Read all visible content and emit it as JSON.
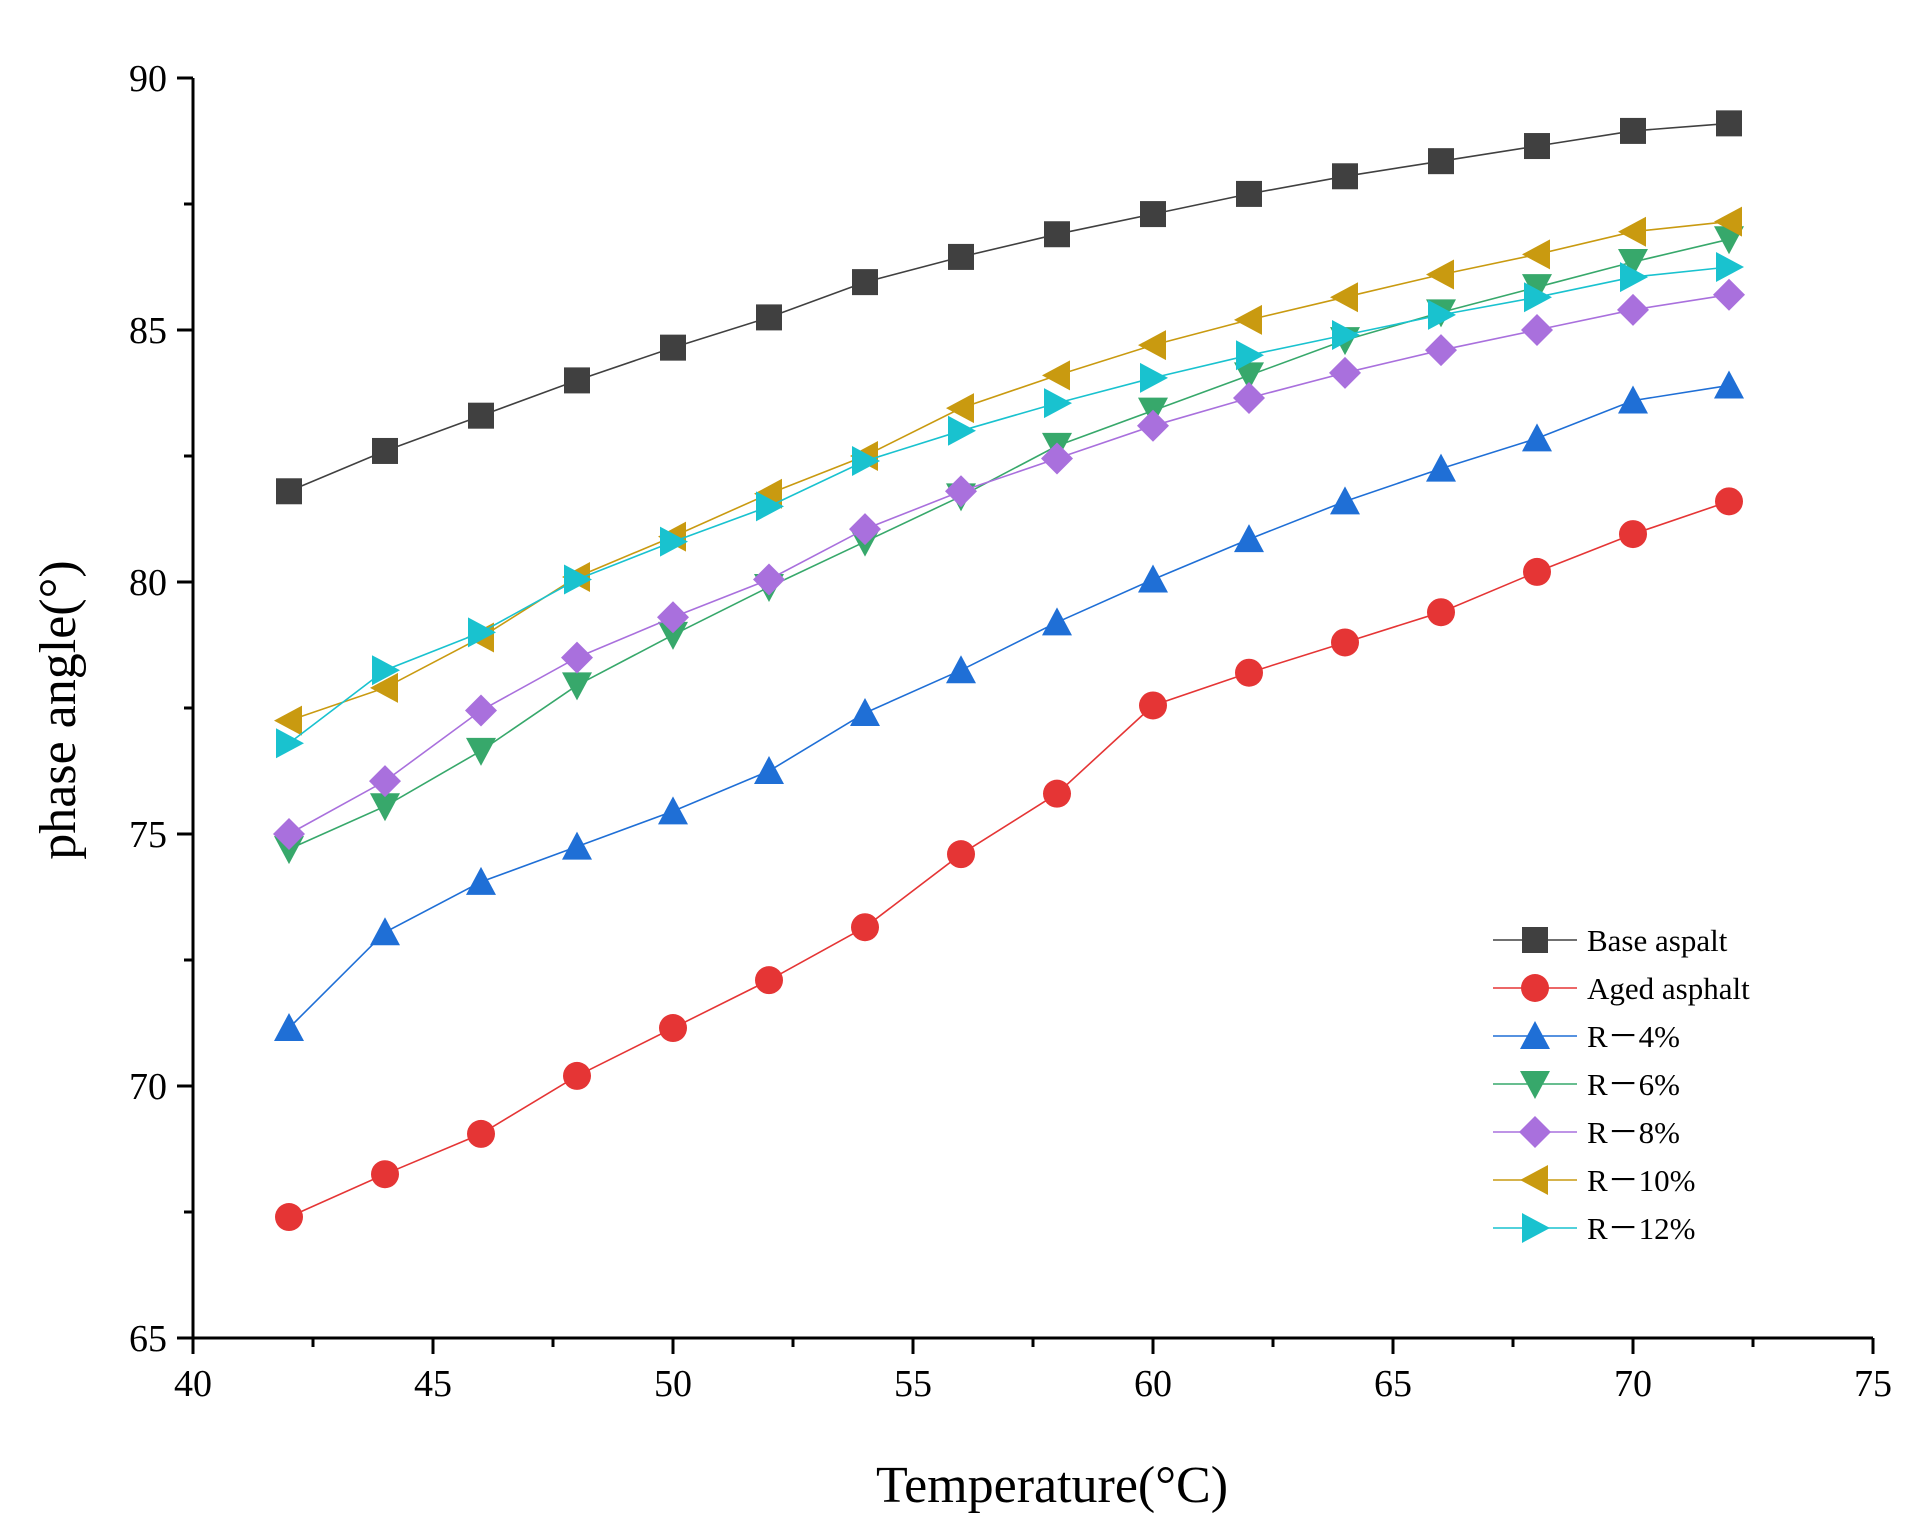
{
  "chart_data": {
    "type": "line",
    "title": "",
    "xlabel": "Temperature(°C)",
    "ylabel": "phase angle(°)",
    "xlim": [
      40,
      75
    ],
    "ylim": [
      65,
      90
    ],
    "x_major_ticks": [
      40,
      45,
      50,
      55,
      60,
      65,
      70,
      75
    ],
    "y_major_ticks": [
      65,
      70,
      75,
      80,
      85,
      90
    ],
    "x_tick_labels": [
      "40",
      "45",
      "50",
      "55",
      "60",
      "65",
      "70",
      "75"
    ],
    "y_tick_labels": [
      "65",
      "70",
      "75",
      "80",
      "85",
      "90"
    ],
    "grid": false,
    "legend_position": "bottom-right",
    "x": [
      42,
      44,
      46,
      48,
      50,
      52,
      54,
      56,
      58,
      60,
      62,
      64,
      66,
      68,
      70,
      72
    ],
    "series": [
      {
        "name": "Base aspalt",
        "color": "#404040",
        "marker": "square",
        "values": [
          81.8,
          82.6,
          83.3,
          84.0,
          84.65,
          85.25,
          85.95,
          86.45,
          86.9,
          87.3,
          87.7,
          88.05,
          88.35,
          88.65,
          88.95,
          89.1
        ]
      },
      {
        "name": "Aged asphalt",
        "color": "#e53535",
        "marker": "circle",
        "values": [
          67.4,
          68.25,
          69.05,
          70.2,
          71.15,
          72.1,
          73.15,
          74.6,
          75.8,
          77.55,
          78.2,
          78.8,
          79.4,
          80.2,
          80.95,
          81.6
        ]
      },
      {
        "name": "R－4%",
        "color": "#1f6fd6",
        "marker": "triangle-up",
        "values": [
          71.15,
          73.05,
          74.05,
          74.75,
          75.45,
          76.25,
          77.4,
          78.25,
          79.2,
          80.05,
          80.85,
          81.6,
          82.25,
          82.85,
          83.6,
          83.9
        ]
      },
      {
        "name": "R－6%",
        "color": "#37a86b",
        "marker": "triangle-down",
        "values": [
          74.7,
          75.55,
          76.65,
          77.95,
          78.95,
          79.9,
          80.8,
          81.7,
          82.7,
          83.4,
          84.1,
          84.8,
          85.35,
          85.85,
          86.35,
          86.8
        ]
      },
      {
        "name": "R－8%",
        "color": "#a970dd",
        "marker": "diamond",
        "values": [
          75.0,
          76.05,
          77.45,
          78.5,
          79.3,
          80.05,
          81.05,
          81.8,
          82.45,
          83.1,
          83.65,
          84.15,
          84.6,
          85.0,
          85.4,
          85.7
        ]
      },
      {
        "name": "R－10%",
        "color": "#c99a10",
        "marker": "triangle-left",
        "values": [
          77.25,
          77.9,
          78.9,
          80.1,
          80.9,
          81.75,
          82.5,
          83.45,
          84.1,
          84.7,
          85.2,
          85.65,
          86.1,
          86.5,
          86.95,
          87.15
        ]
      },
      {
        "name": "R－12%",
        "color": "#19c2cf",
        "marker": "triangle-right",
        "values": [
          76.8,
          78.25,
          79.0,
          80.05,
          80.8,
          81.5,
          82.4,
          83.0,
          83.55,
          84.05,
          84.5,
          84.9,
          85.3,
          85.65,
          86.05,
          86.25
        ]
      }
    ]
  }
}
